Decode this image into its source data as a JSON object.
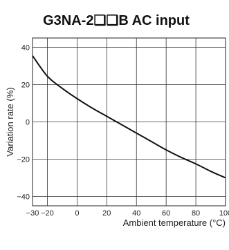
{
  "chart_data": {
    "type": "line",
    "title": "G3NA-2❏❏B AC input",
    "xlabel": "Ambient temperature (°C)",
    "ylabel": "Variation rate (%)",
    "xlim": [
      -30,
      100
    ],
    "ylim": [
      -45,
      45
    ],
    "x_ticks": [
      -30,
      -20,
      0,
      20,
      40,
      60,
      80,
      100
    ],
    "y_ticks": [
      40,
      20,
      0,
      -20,
      -40
    ],
    "x_grid": [
      -30,
      -20,
      0,
      20,
      40,
      60,
      80,
      100
    ],
    "y_grid": [
      40,
      20,
      0,
      -20,
      -40
    ],
    "grid": true,
    "series": [
      {
        "x": [
          -30,
          -20,
          -10,
          0,
          10,
          20,
          30,
          40,
          50,
          60,
          70,
          80,
          90,
          100
        ],
        "y": [
          35.5,
          24.5,
          18.0,
          12.5,
          7.5,
          3.0,
          -1.5,
          -6.0,
          -10.5,
          -15.0,
          -19.0,
          -22.5,
          -26.5,
          -30.0
        ],
        "color": "#111111"
      }
    ]
  }
}
